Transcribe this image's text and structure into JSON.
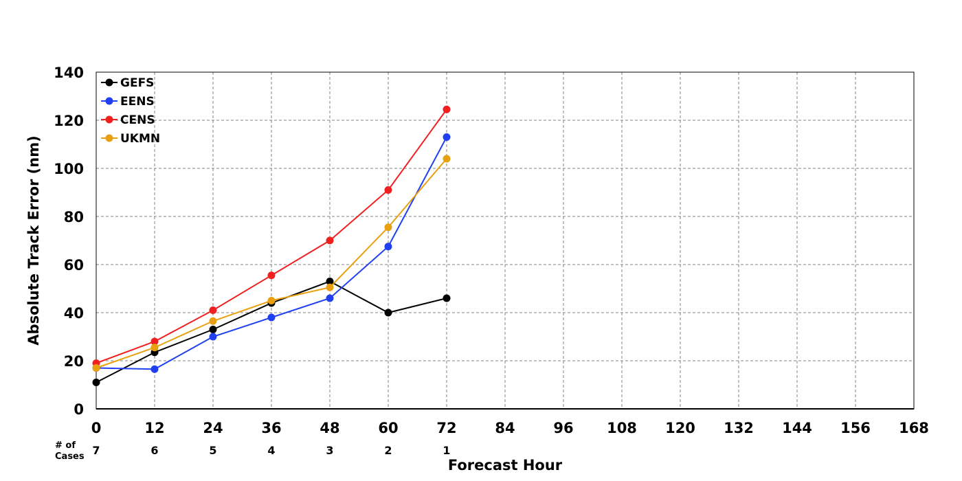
{
  "chart_data": {
    "type": "line",
    "title": "",
    "xlabel": "Forecast Hour",
    "ylabel": "Absolute Track Error (nm)",
    "x_ticks": [
      0,
      12,
      24,
      36,
      48,
      60,
      72,
      84,
      96,
      108,
      120,
      132,
      144,
      156,
      168
    ],
    "y_ticks": [
      0,
      20,
      40,
      60,
      80,
      100,
      120,
      140
    ],
    "xlim": [
      0,
      168
    ],
    "ylim": [
      0,
      140
    ],
    "grid": true,
    "legend_position": "top-left",
    "cases_label_line1": "# of",
    "cases_label_line2": "Cases",
    "cases": [
      {
        "x": 0,
        "n": "7"
      },
      {
        "x": 12,
        "n": "6"
      },
      {
        "x": 24,
        "n": "5"
      },
      {
        "x": 36,
        "n": "4"
      },
      {
        "x": 48,
        "n": "3"
      },
      {
        "x": 60,
        "n": "2"
      },
      {
        "x": 72,
        "n": "1"
      }
    ],
    "x": [
      0,
      12,
      24,
      36,
      48,
      60,
      72
    ],
    "series": [
      {
        "name": "GEFS",
        "color": "#000000",
        "values": [
          11,
          23.5,
          33,
          44,
          53,
          40,
          46
        ]
      },
      {
        "name": "EENS",
        "color": "#2040f0",
        "values": [
          17,
          16.5,
          30,
          38,
          46,
          67.5,
          113
        ]
      },
      {
        "name": "CENS",
        "color": "#f02020",
        "values": [
          19,
          28,
          41,
          55.5,
          70,
          91,
          124.5
        ]
      },
      {
        "name": "UKMN",
        "color": "#e8a010",
        "values": [
          17,
          25.5,
          36.5,
          45,
          50.5,
          75.5,
          104
        ]
      }
    ]
  }
}
